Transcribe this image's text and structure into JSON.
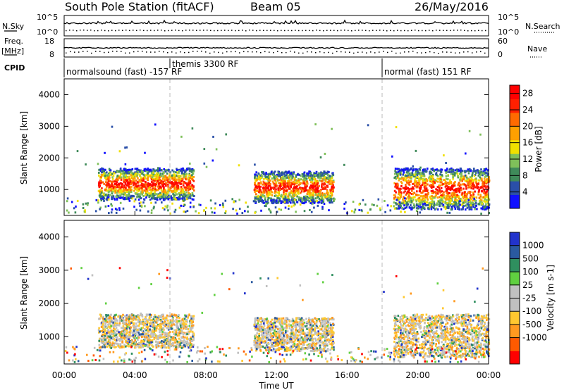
{
  "header": {
    "station": "South Pole Station (fitACF)",
    "beam": "Beam 05",
    "date": "26/May/2016"
  },
  "left_labels": {
    "nsky": "N.Sky",
    "freq_1": "Freq.",
    "freq_2": "[MHz]",
    "cpid": "CPID"
  },
  "right_labels": {
    "nsearch": "N.Search",
    "nave": "Nave"
  },
  "noise_panel": {
    "left_ticks": [
      "10^5",
      "10^0"
    ],
    "right_ticks": [
      "10^5",
      "10^0"
    ]
  },
  "freq_panel": {
    "left_ticks": [
      "18",
      "8"
    ],
    "right_ticks": [
      "60",
      "0"
    ]
  },
  "cpid_segments": [
    {
      "label": "normalsound (fast) -157 RF",
      "start_h": 0
    },
    {
      "label": "themis 3300 RF",
      "start_h": 6.0
    },
    {
      "label": "normal (fast) 151 RF",
      "start_h": 18.0
    }
  ],
  "colors": {
    "power_scale": [
      "#1010ff",
      "#2a4fa8",
      "#3f8a5a",
      "#7fc05a",
      "#f0e000",
      "#ffa000",
      "#ff6a00",
      "#ff2000",
      "#ff0000"
    ],
    "velocity_scale": [
      "#ff0000",
      "#ff5a00",
      "#ff9a20",
      "#ffc830",
      "#c0c0c0",
      "#c0c0c0",
      "#60d040",
      "#2f8f5f",
      "#2a5aa0",
      "#2233cc"
    ]
  },
  "chart_data": [
    {
      "type": "heatmap",
      "title": "Power",
      "xlabel": "",
      "ylabel": "Slant Range [km]",
      "x_range_hours": [
        0,
        24
      ],
      "ylim": [
        180,
        4500
      ],
      "yticks": [
        "1000",
        "2000",
        "3000",
        "4000"
      ],
      "xticks": [
        "00:00",
        "04:00",
        "08:00",
        "12:00",
        "16:00",
        "20:00",
        "00:00"
      ],
      "colorbar_label": "Power [dB]",
      "colorbar_ticks": [
        "4",
        "8",
        "12",
        "16",
        "20",
        "24",
        "28"
      ],
      "colorbar_range": [
        0,
        30
      ],
      "scatter_regions": [
        {
          "t_start": 1.9,
          "t_end": 7.3,
          "r_low": 700,
          "r_high": 1700
        },
        {
          "t_start": 10.7,
          "t_end": 15.2,
          "r_low": 600,
          "r_high": 1600
        },
        {
          "t_start": 18.6,
          "t_end": 24.0,
          "r_low": 400,
          "r_high": 1700
        }
      ]
    },
    {
      "type": "heatmap",
      "title": "Velocity",
      "xlabel": "Time UT",
      "ylabel": "Slant Range [km]",
      "x_range_hours": [
        0,
        24
      ],
      "ylim": [
        180,
        4500
      ],
      "yticks": [
        "1000",
        "2000",
        "3000",
        "4000"
      ],
      "xticks": [
        "00:00",
        "04:00",
        "08:00",
        "12:00",
        "16:00",
        "20:00",
        "00:00"
      ],
      "colorbar_label": "Velocity [m s-1]",
      "colorbar_ticks": [
        "1000",
        "500",
        "100",
        "25",
        "-25",
        "-100",
        "-500",
        "-1000"
      ],
      "scatter_regions": [
        {
          "t_start": 1.9,
          "t_end": 7.3,
          "r_low": 700,
          "r_high": 1700
        },
        {
          "t_start": 10.7,
          "t_end": 15.2,
          "r_low": 600,
          "r_high": 1600
        },
        {
          "t_start": 18.6,
          "t_end": 24.0,
          "r_low": 400,
          "r_high": 1700
        }
      ]
    }
  ]
}
